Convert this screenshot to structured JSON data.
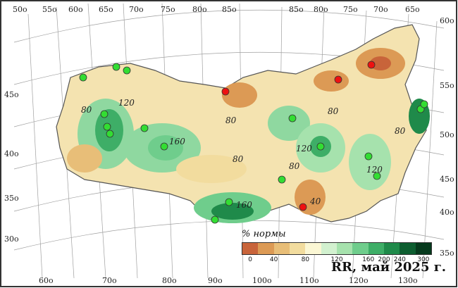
{
  "map": {
    "caption": "RR, май 2025 г.",
    "legend_title": "% нормы",
    "legend_ticks": [
      "0",
      "40",
      "80",
      "120",
      "160",
      "200",
      "240",
      "300"
    ],
    "legend_colors": [
      "#c8643a",
      "#dc9a55",
      "#e8be78",
      "#f2dc9e",
      "#fbf7d4",
      "#d2f1cf",
      "#a6e2ad",
      "#6fcd8c",
      "#3eae67",
      "#1f8a4a",
      "#0d5e30",
      "#063a1d"
    ],
    "iso_labels": [
      "80",
      "120",
      "160",
      "80",
      "80",
      "120",
      "80",
      "160",
      "80",
      "40",
      "120",
      "80"
    ],
    "lat_right": [
      "60o",
      "55o",
      "50o",
      "45o",
      "40o",
      "35o"
    ],
    "lat_left": [
      "45o",
      "40o",
      "35o",
      "30o"
    ],
    "lon_top": [
      "50o",
      "55o",
      "60o",
      "65o",
      "70o",
      "75o",
      "80o",
      "85o",
      "85o",
      "80o",
      "75o",
      "70o",
      "65o"
    ],
    "lon_bottom": [
      "60o",
      "70o",
      "80o",
      "90o",
      "100o",
      "110o",
      "120o",
      "130o"
    ],
    "colors": {
      "background": "#ffffff",
      "border": "#333333",
      "grid": "#9a9a9a",
      "station_green": "#33dd33",
      "station_red": "#ee1111",
      "sea": "#ffffff"
    }
  }
}
